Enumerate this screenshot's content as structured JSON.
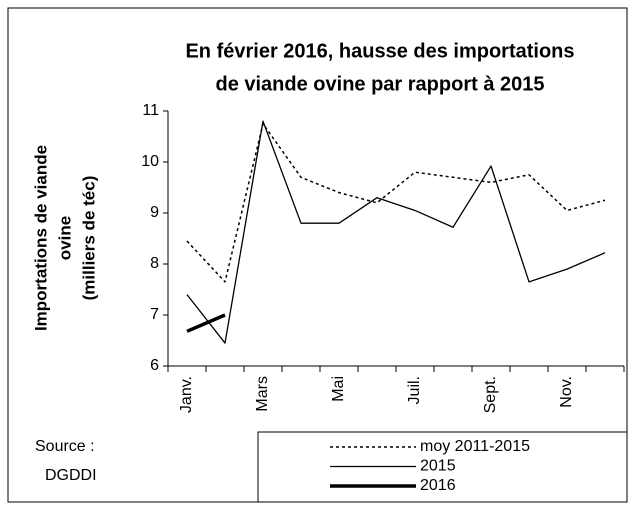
{
  "chart_data": {
    "type": "line",
    "title": [
      "En février 2016, hausse des importations",
      "de viande ovine par rapport à 2015"
    ],
    "y_label": [
      "Importations de viande",
      "ovine",
      "(milliers de téc)"
    ],
    "source": [
      "Source :",
      "DGDDI"
    ],
    "categories": [
      "Janv.",
      null,
      "Mars",
      null,
      "Mai",
      null,
      "Juil.",
      null,
      "Sept.",
      null,
      "Nov.",
      null
    ],
    "series": [
      {
        "name": "moy 2011-2015",
        "color": "#000000",
        "dash": "3,3",
        "width": 1.5,
        "values": [
          8.45,
          7.65,
          10.75,
          9.7,
          9.4,
          9.2,
          9.8,
          9.7,
          9.6,
          9.75,
          9.05,
          9.25
        ]
      },
      {
        "name": "2015",
        "color": "#000000",
        "dash": "none",
        "width": 1.3,
        "values": [
          7.4,
          6.45,
          10.8,
          8.8,
          8.8,
          9.3,
          9.05,
          8.72,
          9.92,
          7.65,
          7.9,
          8.22
        ]
      },
      {
        "name": "2016",
        "color": "#000000",
        "dash": "none",
        "width": 3.5,
        "values": [
          6.68,
          7.0,
          null,
          null,
          null,
          null,
          null,
          null,
          null,
          null,
          null,
          null
        ]
      }
    ],
    "ylim": [
      6,
      11
    ],
    "yticks": [
      6,
      7,
      8,
      9,
      10,
      11
    ]
  }
}
